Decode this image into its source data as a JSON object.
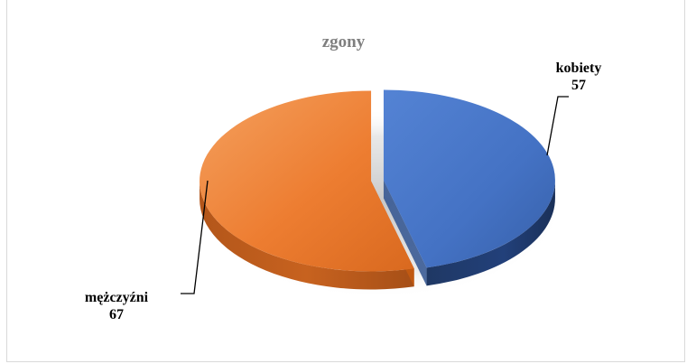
{
  "chart_data": {
    "type": "pie",
    "title": "zgony",
    "slices": [
      {
        "label": "kobiety",
        "value": 57,
        "value_text": "57",
        "color": "#4472c4"
      },
      {
        "label": "mężczyźni",
        "value": 67,
        "value_text": "67",
        "color": "#ed7d31"
      }
    ],
    "style": "3d-exploded",
    "legend": "none"
  }
}
